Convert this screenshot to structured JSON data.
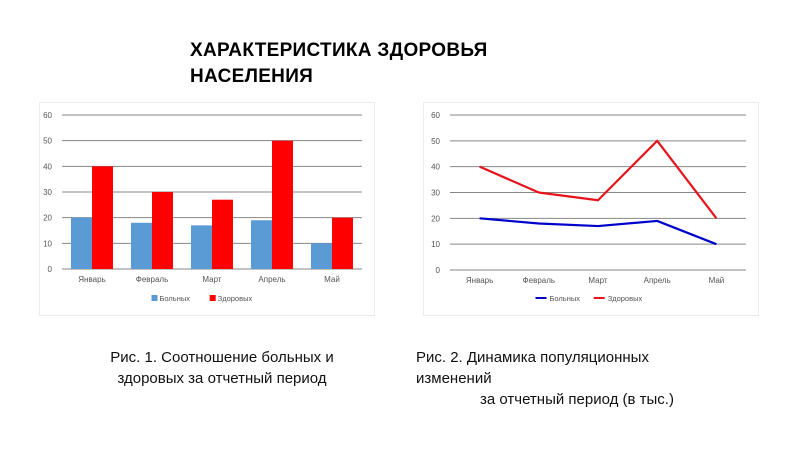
{
  "page": {
    "title_line1": "ХАРАКТЕРИСТИКА ЗДОРОВЬЯ",
    "title_line2": "НАСЕЛЕНИЯ"
  },
  "captions": {
    "fig1_line1": "Рис. 1. Соотношение больных и",
    "fig1_line2": "здоровых за отчетный период",
    "fig2_line1": "Рис. 2. Динамика популяционных",
    "fig2_line2": "изменений",
    "fig2_line3": "за отчетный период (в тыс.)"
  },
  "colors": {
    "sick": "#5b9bd5",
    "healthy_bar": "#ff0000",
    "sick_line": "#0000cc",
    "healthy_line": "#e8141c",
    "grid": "#878787"
  },
  "chart_data": [
    {
      "type": "bar",
      "categories": [
        "Январь",
        "Февраль",
        "Март",
        "Апрель",
        "Май"
      ],
      "series": [
        {
          "name": "Больных",
          "values": [
            20,
            18,
            17,
            19,
            10
          ]
        },
        {
          "name": "Здоровых",
          "values": [
            40,
            30,
            27,
            50,
            20
          ]
        }
      ],
      "ylim": [
        0,
        60
      ],
      "yticks": [
        0,
        10,
        20,
        30,
        40,
        50,
        60
      ],
      "grid": true,
      "legend_position": "bottom"
    },
    {
      "type": "line",
      "categories": [
        "Январь",
        "Февраль",
        "Март",
        "Апрель",
        "Май"
      ],
      "series": [
        {
          "name": "Больных",
          "values": [
            20,
            18,
            17,
            19,
            10
          ]
        },
        {
          "name": "Здоровых",
          "values": [
            40,
            30,
            27,
            50,
            20
          ]
        }
      ],
      "ylim": [
        0,
        60
      ],
      "yticks": [
        0,
        10,
        20,
        30,
        40,
        50,
        60
      ],
      "grid": true,
      "legend_position": "bottom"
    }
  ]
}
